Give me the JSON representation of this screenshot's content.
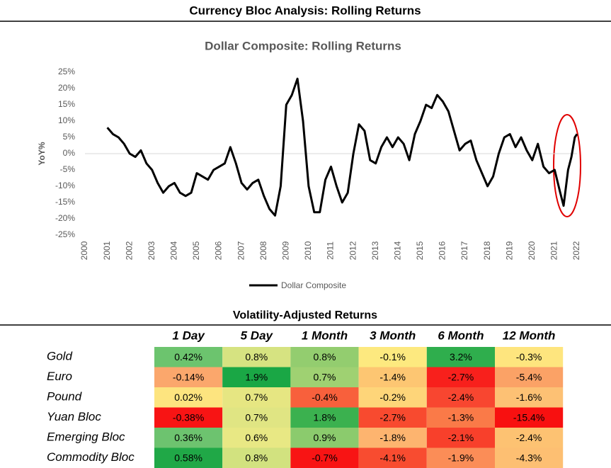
{
  "header": {
    "title": "Currency Bloc Analysis: Rolling Returns"
  },
  "chart_data": {
    "type": "line",
    "title": "Dollar Composite: Rolling Returns",
    "y_label": "YoY%",
    "x": [
      2001.0,
      2001.25,
      2001.5,
      2001.75,
      2002.0,
      2002.25,
      2002.5,
      2002.75,
      2003.0,
      2003.25,
      2003.5,
      2003.75,
      2004.0,
      2004.25,
      2004.5,
      2004.75,
      2005.0,
      2005.25,
      2005.5,
      2005.75,
      2006.0,
      2006.25,
      2006.5,
      2006.75,
      2007.0,
      2007.25,
      2007.5,
      2007.75,
      2008.0,
      2008.25,
      2008.5,
      2008.75,
      2009.0,
      2009.25,
      2009.5,
      2009.75,
      2010.0,
      2010.25,
      2010.5,
      2010.75,
      2011.0,
      2011.25,
      2011.5,
      2011.75,
      2012.0,
      2012.25,
      2012.5,
      2012.75,
      2013.0,
      2013.25,
      2013.5,
      2013.75,
      2014.0,
      2014.25,
      2014.5,
      2014.75,
      2015.0,
      2015.25,
      2015.5,
      2015.75,
      2016.0,
      2016.25,
      2016.5,
      2016.75,
      2017.0,
      2017.25,
      2017.5,
      2017.75,
      2018.0,
      2018.25,
      2018.5,
      2018.75,
      2019.0,
      2019.25,
      2019.5,
      2019.75,
      2020.0,
      2020.25,
      2020.5,
      2020.75,
      2021.0,
      2021.25,
      2021.4,
      2021.6,
      2021.75,
      2021.9,
      2022.0
    ],
    "series": [
      {
        "name": "Dollar Composite",
        "color": "#000000",
        "values": [
          8,
          6,
          5,
          3,
          0,
          -1,
          1,
          -3,
          -5,
          -9,
          -12,
          -10,
          -9,
          -12,
          -13,
          -12,
          -6,
          -7,
          -8,
          -5,
          -4,
          -3,
          2,
          -3,
          -9,
          -11,
          -9,
          -8,
          -13,
          -17,
          -19,
          -10,
          15,
          18,
          23,
          10,
          -10,
          -18,
          -18,
          -8,
          -4,
          -10,
          -15,
          -12,
          0,
          9,
          7,
          -2,
          -3,
          2,
          5,
          2,
          5,
          3,
          -2,
          6,
          10,
          15,
          14,
          18,
          16,
          13,
          7,
          1,
          3,
          4,
          -2,
          -6,
          -10,
          -7,
          0,
          5,
          6,
          2,
          5,
          1,
          -2,
          3,
          -4,
          -6,
          -5,
          -12,
          -16,
          -5,
          -1,
          5,
          6
        ]
      }
    ],
    "xlim": [
      2000,
      2022
    ],
    "xticks": [
      2000,
      2001,
      2002,
      2003,
      2004,
      2005,
      2006,
      2007,
      2008,
      2009,
      2010,
      2011,
      2012,
      2013,
      2014,
      2015,
      2016,
      2017,
      2018,
      2019,
      2020,
      2021,
      2022
    ],
    "ylim": [
      -25,
      25
    ],
    "yticks": [
      {
        "value": 25,
        "label": "25%"
      },
      {
        "value": 20,
        "label": "20%"
      },
      {
        "value": 15,
        "label": "15%"
      },
      {
        "value": 10,
        "label": "10%"
      },
      {
        "value": 5,
        "label": "5%"
      },
      {
        "value": 0,
        "label": "0%"
      },
      {
        "value": -5,
        "label": "-5%"
      },
      {
        "value": -10,
        "label": "-10%"
      },
      {
        "value": -15,
        "label": "-15%"
      },
      {
        "value": -20,
        "label": "-20%"
      },
      {
        "value": -25,
        "label": "-25%"
      }
    ],
    "legend": "bottom"
  },
  "table": {
    "title": "Volatility-Adjusted Returns",
    "columns": [
      "1 Day",
      "5 Day",
      "1 Month",
      "3 Month",
      "6 Month",
      "12 Month"
    ],
    "rows": [
      {
        "label": "Gold",
        "cells": [
          "0.42%",
          "0.8%",
          "0.8%",
          "-0.1%",
          "3.2%",
          "-0.3%"
        ],
        "colors": [
          "#6cc46e",
          "#d6e381",
          "#93cd6f",
          "#fde97f",
          "#2fae4d",
          "#fee57e"
        ]
      },
      {
        "label": "Euro",
        "cells": [
          "-0.14%",
          "1.9%",
          "0.7%",
          "-1.4%",
          "-2.7%",
          "-5.4%"
        ],
        "colors": [
          "#fba76c",
          "#1aa745",
          "#9fd172",
          "#fdc672",
          "#f8201c",
          "#fba266"
        ]
      },
      {
        "label": "Pound",
        "cells": [
          "0.02%",
          "0.7%",
          "-0.4%",
          "-0.2%",
          "-2.4%",
          "-1.6%"
        ],
        "colors": [
          "#fde47f",
          "#e6e682",
          "#f8603c",
          "#fed579",
          "#f84630",
          "#fdc174"
        ]
      },
      {
        "label": "Yuan Bloc",
        "cells": [
          "-0.38%",
          "0.7%",
          "1.8%",
          "-2.7%",
          "-1.3%",
          "-15.4%"
        ],
        "colors": [
          "#f81414",
          "#e0e583",
          "#3bb14f",
          "#f84a2f",
          "#fa7a48",
          "#f81010"
        ]
      },
      {
        "label": "Emerging Bloc",
        "cells": [
          "0.36%",
          "0.6%",
          "0.9%",
          "-1.8%",
          "-2.1%",
          "-2.4%"
        ],
        "colors": [
          "#6dc36f",
          "#e8e884",
          "#8bcb6d",
          "#fdb46f",
          "#f8402b",
          "#fdc272"
        ]
      },
      {
        "label": "Commodity Bloc",
        "cells": [
          "0.58%",
          "0.8%",
          "-0.7%",
          "-4.1%",
          "-1.9%",
          "-4.3%"
        ],
        "colors": [
          "#20a847",
          "#d2e27f",
          "#f81414",
          "#f84c30",
          "#fb8d57",
          "#fdbf72"
        ]
      }
    ]
  }
}
